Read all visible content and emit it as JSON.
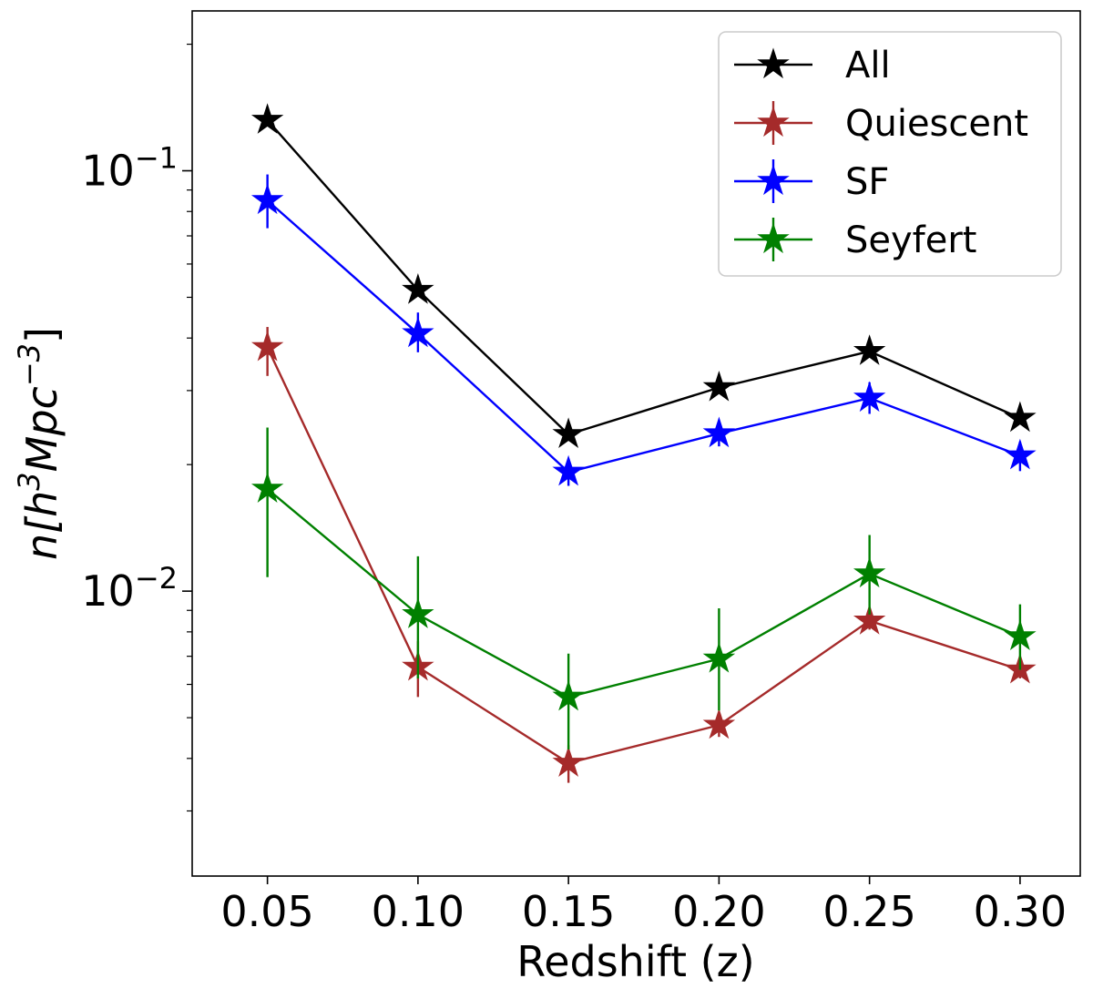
{
  "chart_data": {
    "type": "line",
    "xlabel": "Redshift (z)",
    "ylabel": {
      "base": "n[h",
      "exp1": "3",
      "mid": "Mpc",
      "exp2": "−3",
      "end": "]"
    },
    "yscale": "log",
    "xlim": [
      0.025,
      0.32
    ],
    "ylim": [
      0.0021,
      0.24
    ],
    "x_ticks": [
      0.05,
      0.1,
      0.15,
      0.2,
      0.25,
      0.3
    ],
    "x_tick_labels": [
      "0.05",
      "0.10",
      "0.15",
      "0.20",
      "0.25",
      "0.30"
    ],
    "y_major_ticks": [
      {
        "value": 0.1,
        "base": "10",
        "exp": "−1"
      },
      {
        "value": 0.01,
        "base": "10",
        "exp": "−2"
      }
    ],
    "y_minor_ticks": [
      0.003,
      0.004,
      0.005,
      0.006,
      0.007,
      0.008,
      0.009,
      0.02,
      0.03,
      0.04,
      0.05,
      0.06,
      0.07,
      0.08,
      0.09,
      0.2
    ],
    "legend_position": "top-right",
    "grid": false,
    "x": [
      0.05,
      0.1,
      0.15,
      0.2,
      0.25,
      0.3
    ],
    "series": [
      {
        "name": "All",
        "color": "#000000",
        "values": [
          0.132,
          0.052,
          0.0236,
          0.0305,
          0.0372,
          0.0258
        ],
        "err_low": null,
        "err_high": null
      },
      {
        "name": "Quiescent",
        "color": "#a52a2a",
        "values": [
          0.038,
          0.0066,
          0.0039,
          0.0048,
          0.0085,
          0.0065
        ],
        "err_low": [
          0.0325,
          0.0056,
          0.0035,
          0.0045,
          0.0081,
          0.0062
        ],
        "err_high": [
          0.0425,
          0.0076,
          0.0043,
          0.0051,
          0.0089,
          0.0069
        ]
      },
      {
        "name": "SF",
        "color": "#0000ff",
        "values": [
          0.085,
          0.041,
          0.0192,
          0.0237,
          0.0288,
          0.021
        ],
        "err_low": [
          0.073,
          0.037,
          0.0178,
          0.0221,
          0.0264,
          0.0193
        ],
        "err_high": [
          0.098,
          0.046,
          0.0206,
          0.0253,
          0.0314,
          0.0227
        ]
      },
      {
        "name": "Seyfert",
        "color": "#008000",
        "values": [
          0.0175,
          0.0088,
          0.0056,
          0.0069,
          0.011,
          0.0078
        ],
        "err_low": [
          0.0108,
          0.0062,
          0.0042,
          0.0052,
          0.0088,
          0.0065
        ],
        "err_high": [
          0.0245,
          0.0121,
          0.0071,
          0.0091,
          0.0136,
          0.0093
        ]
      }
    ]
  }
}
